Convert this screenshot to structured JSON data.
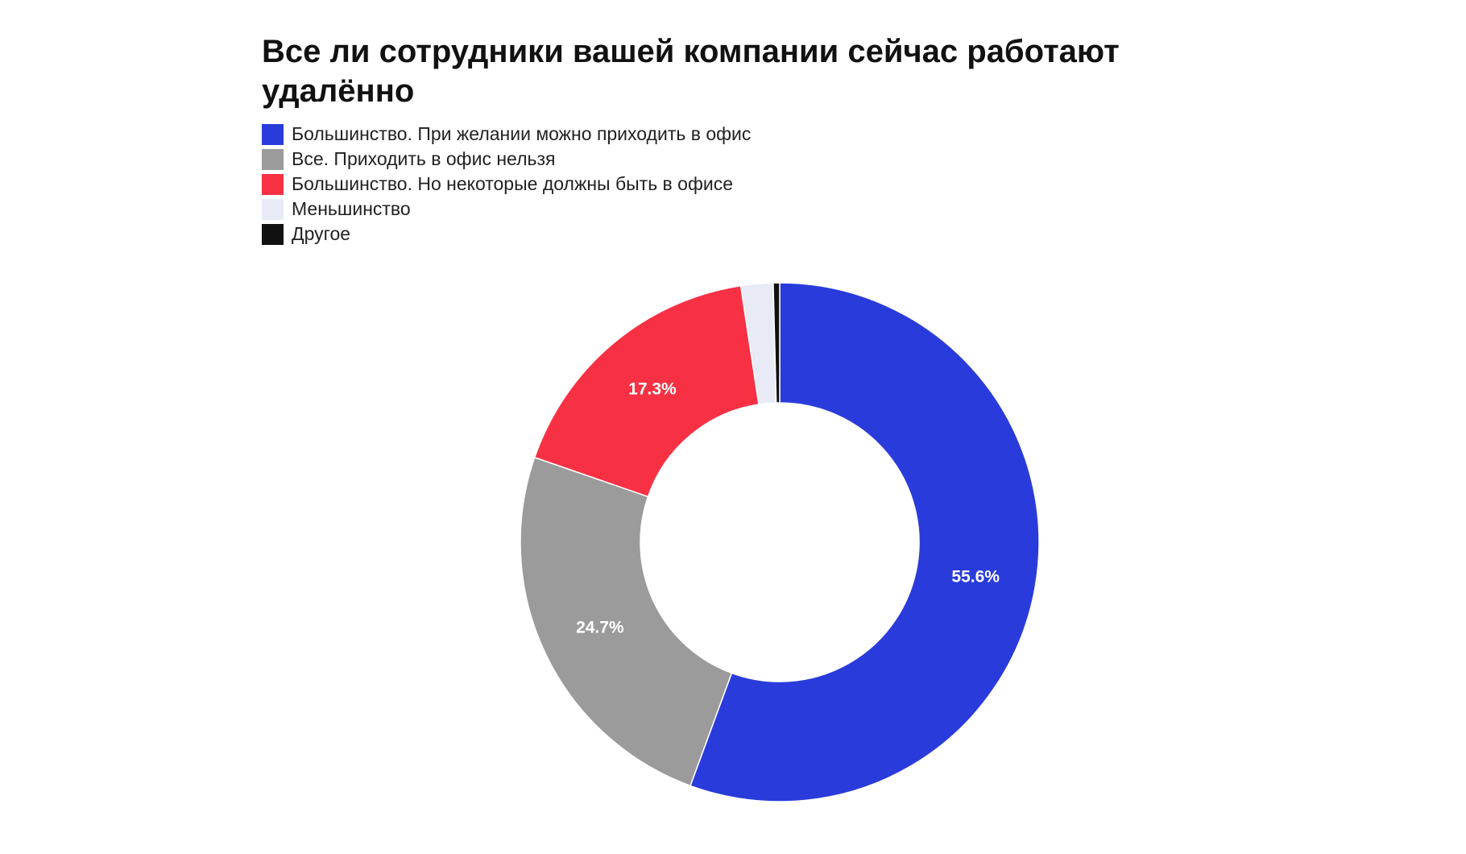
{
  "chart_data": {
    "type": "pie",
    "title": "Все ли сотрудники вашей компании сейчас работают удалённо",
    "legend_placement": "top-left",
    "donut": true,
    "slices": [
      {
        "label": "Большинство. При желании можно приходить в офис",
        "value": 55.6,
        "value_label": "55.6%",
        "color": "#2a3bdb"
      },
      {
        "label": "Все. Приходить в офис нельзя",
        "value": 24.7,
        "value_label": "24.7%",
        "color": "#9b9b9b"
      },
      {
        "label": "Большинство. Но некоторые должны быть в офисе",
        "value": 17.3,
        "value_label": "17.3%",
        "color": "#f73143"
      },
      {
        "label": "Меньшинство",
        "value": 2.0,
        "value_label": "",
        "color": "#e8eaf6"
      },
      {
        "label": "Другое",
        "value": 0.4,
        "value_label": "",
        "color": "#111111"
      }
    ]
  }
}
